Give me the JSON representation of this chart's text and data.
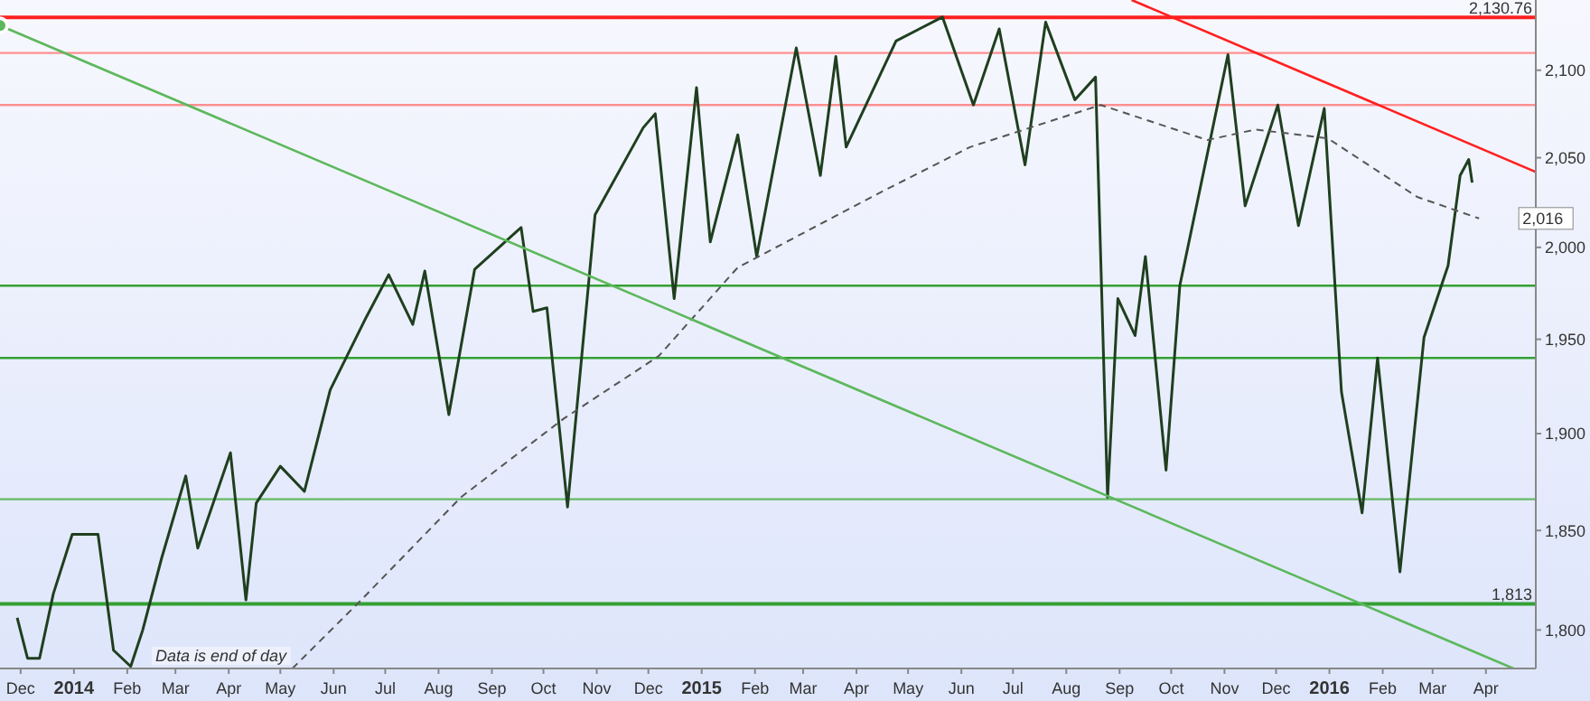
{
  "chart_data": {
    "type": "line",
    "log": true,
    "grid": false,
    "xlim": [
      "2013-11-19",
      "2016-04-30"
    ],
    "ylim": [
      1781,
      2141
    ],
    "yticks": [
      {
        "value": 1800,
        "label": "1,800"
      },
      {
        "value": 1850,
        "label": "1,850"
      },
      {
        "value": 1900,
        "label": "1,900"
      },
      {
        "value": 1950,
        "label": "1,950"
      },
      {
        "value": 2000,
        "label": "2,000"
      },
      {
        "value": 2050,
        "label": "2,050"
      },
      {
        "value": 2100,
        "label": "2,100"
      }
    ],
    "xticks": [
      {
        "value": "2013-12-01",
        "label": "Dec"
      },
      {
        "value": "2014-01-01",
        "label": "2014"
      },
      {
        "value": "2014-02-01",
        "label": "Feb"
      },
      {
        "value": "2014-03-01",
        "label": "Mar"
      },
      {
        "value": "2014-04-01",
        "label": "Apr"
      },
      {
        "value": "2014-05-01",
        "label": "May"
      },
      {
        "value": "2014-06-01",
        "label": "Jun"
      },
      {
        "value": "2014-07-01",
        "label": "Jul"
      },
      {
        "value": "2014-08-01",
        "label": "Aug"
      },
      {
        "value": "2014-09-01",
        "label": "Sep"
      },
      {
        "value": "2014-10-01",
        "label": "Oct"
      },
      {
        "value": "2014-11-01",
        "label": "Nov"
      },
      {
        "value": "2014-12-01",
        "label": "Dec"
      },
      {
        "value": "2015-01-01",
        "label": "2015"
      },
      {
        "value": "2015-02-01",
        "label": "Feb"
      },
      {
        "value": "2015-03-01",
        "label": "Mar"
      },
      {
        "value": "2015-04-01",
        "label": "Apr"
      },
      {
        "value": "2015-05-01",
        "label": "May"
      },
      {
        "value": "2015-06-01",
        "label": "Jun"
      },
      {
        "value": "2015-07-01",
        "label": "Jul"
      },
      {
        "value": "2015-08-01",
        "label": "Aug"
      },
      {
        "value": "2015-09-01",
        "label": "Sep"
      },
      {
        "value": "2015-10-01",
        "label": "Oct"
      },
      {
        "value": "2015-11-01",
        "label": "Nov"
      },
      {
        "value": "2015-12-01",
        "label": "Dec"
      },
      {
        "value": "2016-01-01",
        "label": "2016"
      },
      {
        "value": "2016-02-01",
        "label": "Feb"
      },
      {
        "value": "2016-03-01",
        "label": "Mar"
      },
      {
        "value": "2016-04-01",
        "label": "Apr"
      }
    ],
    "series": [
      {
        "color": "#1f3f1f",
        "x": [
          "2013-11-29",
          "2013-12-05",
          "2013-12-12",
          "2013-12-20",
          "2013-12-31",
          "2014-01-15",
          "2014-01-24",
          "2014-02-03",
          "2014-02-10",
          "2014-02-21",
          "2014-03-07",
          "2014-03-14",
          "2014-04-02",
          "2014-04-11",
          "2014-04-17",
          "2014-05-01",
          "2014-05-15",
          "2014-05-30",
          "2014-06-20",
          "2014-07-03",
          "2014-07-17",
          "2014-07-24",
          "2014-08-07",
          "2014-08-22",
          "2014-09-18",
          "2014-09-25",
          "2014-10-03",
          "2014-10-15",
          "2014-10-31",
          "2014-11-28",
          "2014-12-05",
          "2014-12-16",
          "2014-12-29",
          "2015-01-06",
          "2015-01-22",
          "2015-02-02",
          "2015-02-25",
          "2015-03-11",
          "2015-03-20",
          "2015-03-26",
          "2015-04-24",
          "2015-05-21",
          "2015-06-08",
          "2015-06-23",
          "2015-07-08",
          "2015-07-20",
          "2015-08-06",
          "2015-08-18",
          "2015-08-25",
          "2015-08-31",
          "2015-09-10",
          "2015-09-16",
          "2015-09-28",
          "2015-10-06",
          "2015-10-22",
          "2015-11-03",
          "2015-11-13",
          "2015-12-02",
          "2015-12-14",
          "2015-12-29",
          "2016-01-08",
          "2016-01-20",
          "2016-01-29",
          "2016-02-11",
          "2016-02-25",
          "2016-03-10",
          "2016-03-17",
          "2016-03-22",
          "2016-03-24"
        ],
        "values": [
          1806,
          1786,
          1786,
          1818,
          1848,
          1848,
          1790,
          1782,
          1800,
          1836,
          1878,
          1841,
          1890,
          1815,
          1864,
          1883,
          1870,
          1923,
          1962,
          1985,
          1958,
          1987,
          1910,
          1988,
          2011,
          1965,
          1967,
          1862,
          2018,
          2067,
          2075,
          1972,
          2090,
          2003,
          2063,
          1995,
          2113,
          2040,
          2108,
          2056,
          2117,
          2131,
          2080,
          2124,
          2046,
          2128,
          2083,
          2096,
          1867,
          1972,
          1952,
          1995,
          1881,
          1979,
          2052,
          2109,
          2023,
          2080,
          2012,
          2078,
          1922,
          1859,
          1940,
          1829,
          1951,
          1990,
          2040,
          2049,
          2036
        ]
      },
      {
        "color": "#555555",
        "line_style": "dashed",
        "x": [
          "2014-05-08",
          "2014-06-16",
          "2014-08-14",
          "2014-10-13",
          "2014-12-07",
          "2015-01-22",
          "2015-04-18",
          "2015-06-06",
          "2015-08-21",
          "2015-10-22",
          "2015-11-19",
          "2015-12-31",
          "2016-02-21",
          "2016-03-28"
        ],
        "values": [
          1781,
          1814,
          1867,
          1908,
          1941,
          1989,
          2032,
          2056,
          2080,
          2060,
          2066,
          2061,
          2028,
          2016
        ]
      },
      {
        "color": "#5cb85c",
        "x": [
          "2013-11-19",
          "2016-04-17"
        ],
        "values": [
          2126,
          1781
        ]
      },
      {
        "color": "#ff2020",
        "x": [
          "2015-09-08",
          "2016-04-30"
        ],
        "values": [
          2141,
          2042
        ]
      }
    ],
    "ref_lines": [
      {
        "axis": "y",
        "value": 2130.76,
        "label": "2,130.76",
        "color": "#ff2020"
      },
      {
        "axis": "y",
        "value": 2110,
        "color": "#ff9090"
      },
      {
        "axis": "y",
        "value": 2080,
        "color": "#ff9090"
      },
      {
        "axis": "y",
        "value": 1979,
        "color": "#33a033"
      },
      {
        "axis": "y",
        "value": 1940,
        "color": "#33a033"
      },
      {
        "axis": "y",
        "value": 1866,
        "color": "#66b866"
      },
      {
        "axis": "y",
        "value": 1813,
        "label": "1,813",
        "color": "#33a033"
      }
    ],
    "annotations": [
      {
        "text": "2,016",
        "x": "2016-03-28",
        "y": 2016
      },
      "Data is end of day"
    ]
  }
}
